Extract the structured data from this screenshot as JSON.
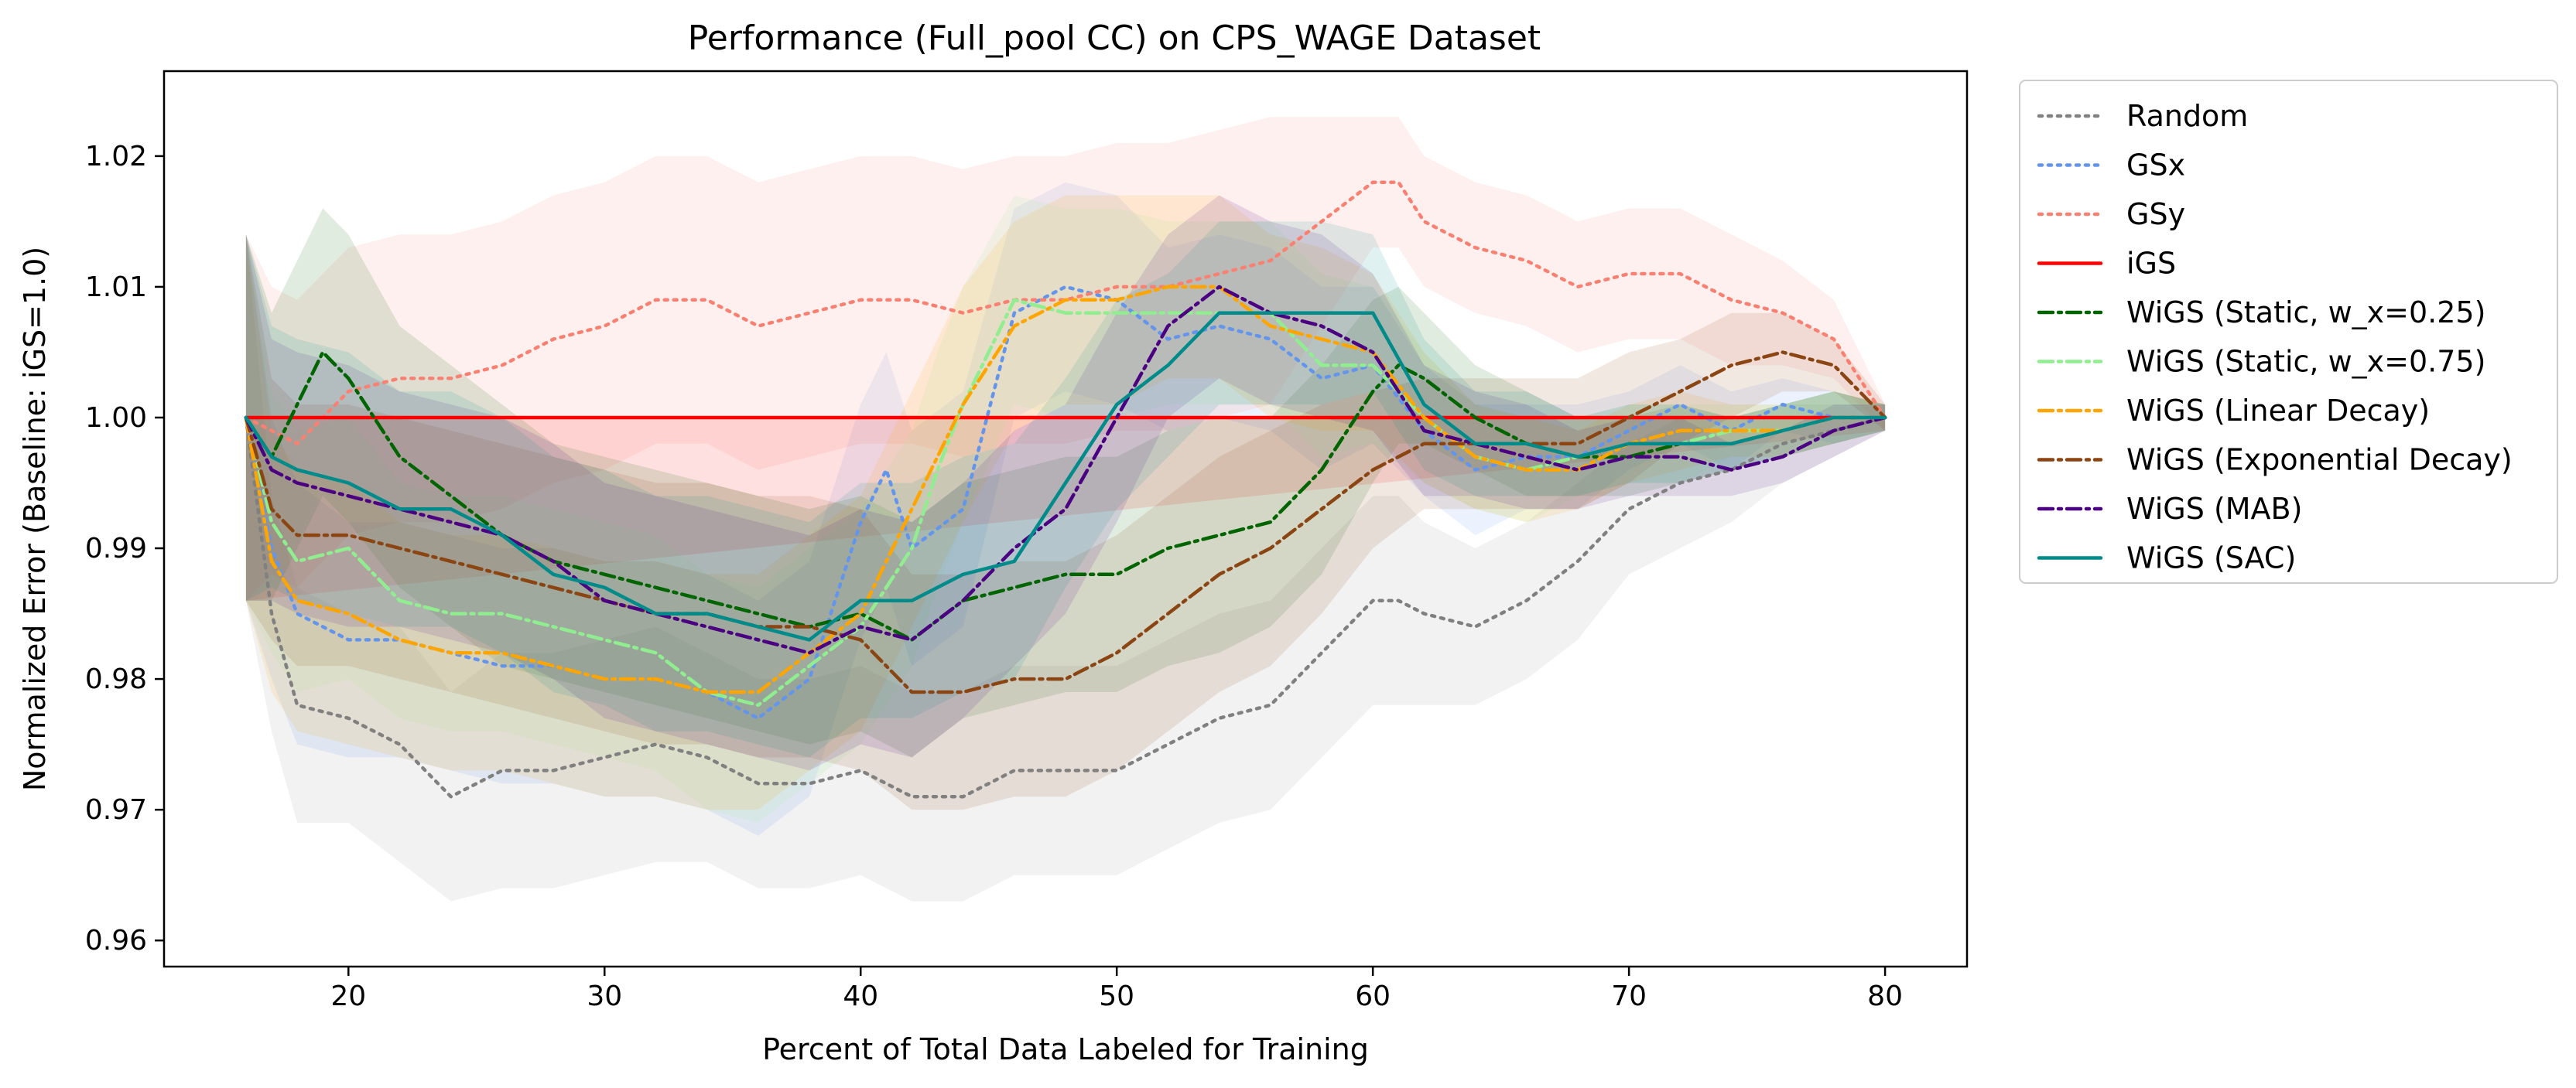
{
  "chart_data": {
    "type": "line",
    "title": "Performance (Full_pool CC) on CPS_WAGE Dataset",
    "xlabel": "Percent of Total Data Labeled for Training",
    "ylabel": "Normalized Error (Baseline: iGS=1.0)",
    "xlim": [
      12.8,
      83.2
    ],
    "ylim": [
      0.958,
      1.0265
    ],
    "x_ticks": [
      20,
      30,
      40,
      50,
      60,
      70,
      80
    ],
    "x_tick_labels": [
      "20",
      "30",
      "40",
      "50",
      "60",
      "70",
      "80"
    ],
    "y_ticks": [
      0.96,
      0.97,
      0.98,
      0.99,
      1.0,
      1.01,
      1.02
    ],
    "y_tick_labels": [
      "0.96",
      "0.97",
      "0.98",
      "0.99",
      "1.00",
      "1.01",
      "1.02"
    ],
    "grid": false,
    "legend_position": "outside-right-top",
    "series": [
      {
        "name": "Random",
        "color": "#808080",
        "dash": "dotted",
        "x": [
          16,
          17,
          18,
          20,
          22,
          24,
          26,
          28,
          30,
          32,
          34,
          36,
          38,
          40,
          42,
          44,
          46,
          48,
          50,
          52,
          54,
          56,
          58,
          60,
          61,
          62,
          64,
          66,
          68,
          70,
          72,
          74,
          76,
          78,
          80
        ],
        "y": [
          1.0,
          0.985,
          0.978,
          0.977,
          0.975,
          0.971,
          0.973,
          0.973,
          0.974,
          0.975,
          0.974,
          0.972,
          0.972,
          0.973,
          0.971,
          0.971,
          0.973,
          0.973,
          0.973,
          0.975,
          0.977,
          0.978,
          0.982,
          0.986,
          0.986,
          0.985,
          0.984,
          0.986,
          0.989,
          0.993,
          0.995,
          0.996,
          0.998,
          0.999,
          1.0
        ],
        "band": [
          0.014,
          0.009,
          0.009,
          0.008,
          0.009,
          0.008,
          0.009,
          0.009,
          0.009,
          0.009,
          0.008,
          0.008,
          0.008,
          0.008,
          0.008,
          0.008,
          0.008,
          0.008,
          0.008,
          0.008,
          0.008,
          0.008,
          0.008,
          0.008,
          0.008,
          0.007,
          0.006,
          0.006,
          0.006,
          0.005,
          0.005,
          0.004,
          0.003,
          0.002,
          0.001
        ]
      },
      {
        "name": "GSx",
        "color": "#6495ED",
        "dash": "dotted",
        "x": [
          16,
          17,
          18,
          20,
          22,
          24,
          26,
          28,
          30,
          32,
          34,
          36,
          38,
          40,
          41,
          42,
          44,
          46,
          48,
          50,
          52,
          54,
          56,
          58,
          60,
          62,
          64,
          66,
          68,
          70,
          72,
          74,
          76,
          78,
          80
        ],
        "y": [
          1.0,
          0.99,
          0.985,
          0.983,
          0.983,
          0.982,
          0.981,
          0.981,
          0.98,
          0.98,
          0.979,
          0.977,
          0.98,
          0.992,
          0.996,
          0.99,
          0.993,
          1.008,
          1.01,
          1.009,
          1.006,
          1.007,
          1.006,
          1.003,
          1.004,
          0.999,
          0.996,
          0.997,
          0.997,
          0.999,
          1.001,
          0.999,
          1.001,
          1.0,
          1.0
        ],
        "band": [
          0.014,
          0.01,
          0.01,
          0.009,
          0.009,
          0.009,
          0.009,
          0.009,
          0.009,
          0.009,
          0.009,
          0.009,
          0.009,
          0.009,
          0.009,
          0.009,
          0.009,
          0.008,
          0.008,
          0.008,
          0.007,
          0.007,
          0.007,
          0.007,
          0.006,
          0.005,
          0.005,
          0.004,
          0.004,
          0.003,
          0.003,
          0.003,
          0.002,
          0.002,
          0.001
        ]
      },
      {
        "name": "GSy",
        "color": "#FA8072",
        "dash": "dotted",
        "x": [
          16,
          17,
          18,
          20,
          22,
          24,
          26,
          28,
          30,
          32,
          34,
          36,
          38,
          40,
          42,
          44,
          46,
          48,
          50,
          52,
          54,
          56,
          58,
          60,
          61,
          62,
          64,
          66,
          68,
          70,
          72,
          74,
          76,
          78,
          80
        ],
        "y": [
          1.0,
          0.999,
          0.998,
          1.002,
          1.003,
          1.003,
          1.004,
          1.006,
          1.007,
          1.009,
          1.009,
          1.007,
          1.008,
          1.009,
          1.009,
          1.008,
          1.009,
          1.009,
          1.01,
          1.01,
          1.011,
          1.012,
          1.015,
          1.018,
          1.018,
          1.015,
          1.013,
          1.012,
          1.01,
          1.011,
          1.011,
          1.009,
          1.008,
          1.006,
          1.0
        ],
        "band": [
          0.014,
          0.011,
          0.011,
          0.011,
          0.011,
          0.011,
          0.011,
          0.011,
          0.011,
          0.011,
          0.011,
          0.011,
          0.011,
          0.011,
          0.011,
          0.011,
          0.011,
          0.011,
          0.011,
          0.011,
          0.011,
          0.011,
          0.008,
          0.005,
          0.005,
          0.005,
          0.005,
          0.005,
          0.005,
          0.005,
          0.005,
          0.005,
          0.004,
          0.003,
          0.001
        ]
      },
      {
        "name": "iGS",
        "color": "#FF0000",
        "dash": "solid",
        "x": [
          16,
          80
        ],
        "y": [
          1.0,
          1.0
        ],
        "band_upper": [
          1.0,
          1.0
        ],
        "band_lower": [
          0.986,
          0.999
        ]
      },
      {
        "name": "WiGS (Static, w_x=0.25)",
        "color": "#006400",
        "dash": "dashdot",
        "x": [
          16,
          17,
          18,
          19,
          20,
          22,
          24,
          26,
          28,
          30,
          32,
          34,
          36,
          38,
          40,
          42,
          44,
          46,
          48,
          50,
          52,
          54,
          56,
          58,
          60,
          61,
          62,
          64,
          66,
          68,
          70,
          72,
          74,
          76,
          78,
          80
        ],
        "y": [
          1.0,
          0.997,
          1.001,
          1.005,
          1.003,
          0.997,
          0.994,
          0.991,
          0.989,
          0.988,
          0.987,
          0.986,
          0.985,
          0.984,
          0.985,
          0.983,
          0.986,
          0.987,
          0.988,
          0.988,
          0.99,
          0.991,
          0.992,
          0.996,
          1.002,
          1.004,
          1.003,
          1.0,
          0.998,
          0.997,
          0.997,
          0.998,
          0.998,
          0.999,
          1.0,
          1.0
        ],
        "band": [
          0.014,
          0.011,
          0.011,
          0.011,
          0.011,
          0.01,
          0.01,
          0.01,
          0.009,
          0.009,
          0.009,
          0.009,
          0.009,
          0.009,
          0.009,
          0.009,
          0.009,
          0.009,
          0.009,
          0.009,
          0.009,
          0.009,
          0.008,
          0.008,
          0.007,
          0.006,
          0.005,
          0.004,
          0.004,
          0.003,
          0.003,
          0.003,
          0.002,
          0.002,
          0.002,
          0.001
        ]
      },
      {
        "name": "WiGS (Static, w_x=0.75)",
        "color": "#90EE90",
        "dash": "dashdot",
        "x": [
          16,
          17,
          18,
          20,
          22,
          24,
          26,
          28,
          30,
          32,
          34,
          36,
          38,
          40,
          42,
          43,
          44,
          46,
          48,
          50,
          52,
          54,
          56,
          58,
          60,
          62,
          64,
          66,
          68,
          70,
          72,
          74,
          76,
          78,
          80
        ],
        "y": [
          1.0,
          0.992,
          0.989,
          0.99,
          0.986,
          0.985,
          0.985,
          0.984,
          0.983,
          0.982,
          0.979,
          0.978,
          0.981,
          0.984,
          0.99,
          0.996,
          1.001,
          1.009,
          1.008,
          1.008,
          1.008,
          1.008,
          1.008,
          1.004,
          1.004,
          1.0,
          0.997,
          0.996,
          0.997,
          0.998,
          0.998,
          0.999,
          0.999,
          1.0,
          1.0
        ],
        "band": [
          0.014,
          0.01,
          0.01,
          0.01,
          0.009,
          0.009,
          0.009,
          0.009,
          0.009,
          0.009,
          0.009,
          0.009,
          0.009,
          0.009,
          0.009,
          0.009,
          0.009,
          0.008,
          0.008,
          0.008,
          0.007,
          0.007,
          0.007,
          0.007,
          0.006,
          0.005,
          0.004,
          0.004,
          0.003,
          0.003,
          0.003,
          0.002,
          0.002,
          0.002,
          0.001
        ]
      },
      {
        "name": "WiGS (Linear Decay)",
        "color": "#FFA500",
        "dash": "dashdot",
        "x": [
          16,
          17,
          18,
          20,
          22,
          24,
          26,
          28,
          30,
          32,
          34,
          36,
          38,
          40,
          42,
          43,
          44,
          46,
          48,
          50,
          52,
          54,
          56,
          58,
          60,
          62,
          64,
          66,
          68,
          70,
          72,
          74,
          76,
          78,
          80
        ],
        "y": [
          1.0,
          0.989,
          0.986,
          0.985,
          0.983,
          0.982,
          0.982,
          0.981,
          0.98,
          0.98,
          0.979,
          0.979,
          0.982,
          0.985,
          0.993,
          0.997,
          1.001,
          1.007,
          1.009,
          1.009,
          1.01,
          1.01,
          1.007,
          1.006,
          1.005,
          1.0,
          0.997,
          0.996,
          0.996,
          0.998,
          0.999,
          0.999,
          0.999,
          1.0,
          1.0
        ],
        "band": [
          0.014,
          0.01,
          0.01,
          0.01,
          0.009,
          0.009,
          0.009,
          0.009,
          0.009,
          0.009,
          0.009,
          0.009,
          0.009,
          0.009,
          0.009,
          0.009,
          0.009,
          0.008,
          0.008,
          0.008,
          0.007,
          0.007,
          0.007,
          0.007,
          0.006,
          0.005,
          0.004,
          0.004,
          0.003,
          0.003,
          0.003,
          0.002,
          0.002,
          0.002,
          0.001
        ]
      },
      {
        "name": "WiGS (Exponential Decay)",
        "color": "#8B4513",
        "dash": "dashdot",
        "x": [
          16,
          17,
          18,
          20,
          22,
          24,
          26,
          28,
          30,
          32,
          34,
          36,
          38,
          40,
          42,
          44,
          46,
          48,
          50,
          52,
          54,
          56,
          58,
          60,
          62,
          64,
          66,
          68,
          70,
          72,
          74,
          76,
          78,
          80
        ],
        "y": [
          1.0,
          0.993,
          0.991,
          0.991,
          0.99,
          0.989,
          0.988,
          0.987,
          0.986,
          0.985,
          0.985,
          0.984,
          0.984,
          0.983,
          0.979,
          0.979,
          0.98,
          0.98,
          0.982,
          0.985,
          0.988,
          0.99,
          0.993,
          0.996,
          0.998,
          0.998,
          0.998,
          0.998,
          1.0,
          1.002,
          1.004,
          1.005,
          1.004,
          1.0
        ],
        "band": [
          0.014,
          0.01,
          0.01,
          0.01,
          0.01,
          0.01,
          0.01,
          0.01,
          0.01,
          0.01,
          0.01,
          0.01,
          0.01,
          0.01,
          0.009,
          0.009,
          0.009,
          0.009,
          0.009,
          0.009,
          0.009,
          0.009,
          0.008,
          0.006,
          0.005,
          0.005,
          0.005,
          0.005,
          0.005,
          0.004,
          0.004,
          0.003,
          0.002,
          0.001
        ]
      },
      {
        "name": "WiGS (MAB)",
        "color": "#4B0082",
        "dash": "dashdot",
        "x": [
          16,
          17,
          18,
          20,
          22,
          24,
          26,
          28,
          30,
          32,
          34,
          36,
          38,
          40,
          42,
          44,
          46,
          48,
          50,
          52,
          54,
          56,
          58,
          60,
          62,
          64,
          66,
          68,
          70,
          72,
          74,
          76,
          78,
          80
        ],
        "y": [
          1.0,
          0.996,
          0.995,
          0.994,
          0.993,
          0.992,
          0.991,
          0.989,
          0.986,
          0.985,
          0.984,
          0.983,
          0.982,
          0.984,
          0.983,
          0.986,
          0.99,
          0.993,
          1.0,
          1.007,
          1.01,
          1.008,
          1.007,
          1.005,
          0.999,
          0.998,
          0.997,
          0.996,
          0.997,
          0.997,
          0.996,
          0.997,
          0.999,
          1.0
        ],
        "band": [
          0.014,
          0.01,
          0.01,
          0.01,
          0.009,
          0.009,
          0.009,
          0.009,
          0.009,
          0.009,
          0.009,
          0.009,
          0.009,
          0.009,
          0.009,
          0.009,
          0.009,
          0.008,
          0.008,
          0.007,
          0.007,
          0.007,
          0.007,
          0.006,
          0.005,
          0.004,
          0.004,
          0.003,
          0.003,
          0.003,
          0.002,
          0.002,
          0.002,
          0.001
        ]
      },
      {
        "name": "WiGS (SAC)",
        "color": "#008B8B",
        "dash": "solid",
        "x": [
          16,
          17,
          18,
          20,
          22,
          24,
          26,
          28,
          30,
          32,
          34,
          36,
          38,
          40,
          42,
          44,
          46,
          48,
          50,
          52,
          54,
          56,
          58,
          60,
          62,
          64,
          66,
          68,
          70,
          72,
          74,
          76,
          78,
          80
        ],
        "y": [
          1.0,
          0.997,
          0.996,
          0.995,
          0.993,
          0.993,
          0.991,
          0.988,
          0.987,
          0.985,
          0.985,
          0.984,
          0.983,
          0.986,
          0.986,
          0.988,
          0.989,
          0.995,
          1.001,
          1.004,
          1.008,
          1.008,
          1.008,
          1.008,
          1.001,
          0.998,
          0.998,
          0.997,
          0.998,
          0.998,
          0.998,
          0.999,
          1.0,
          1.0
        ],
        "band": [
          0.014,
          0.01,
          0.01,
          0.01,
          0.009,
          0.009,
          0.009,
          0.009,
          0.009,
          0.009,
          0.009,
          0.009,
          0.009,
          0.009,
          0.009,
          0.009,
          0.009,
          0.008,
          0.008,
          0.007,
          0.007,
          0.007,
          0.007,
          0.006,
          0.005,
          0.004,
          0.004,
          0.003,
          0.003,
          0.003,
          0.002,
          0.002,
          0.002,
          0.001
        ]
      }
    ]
  }
}
